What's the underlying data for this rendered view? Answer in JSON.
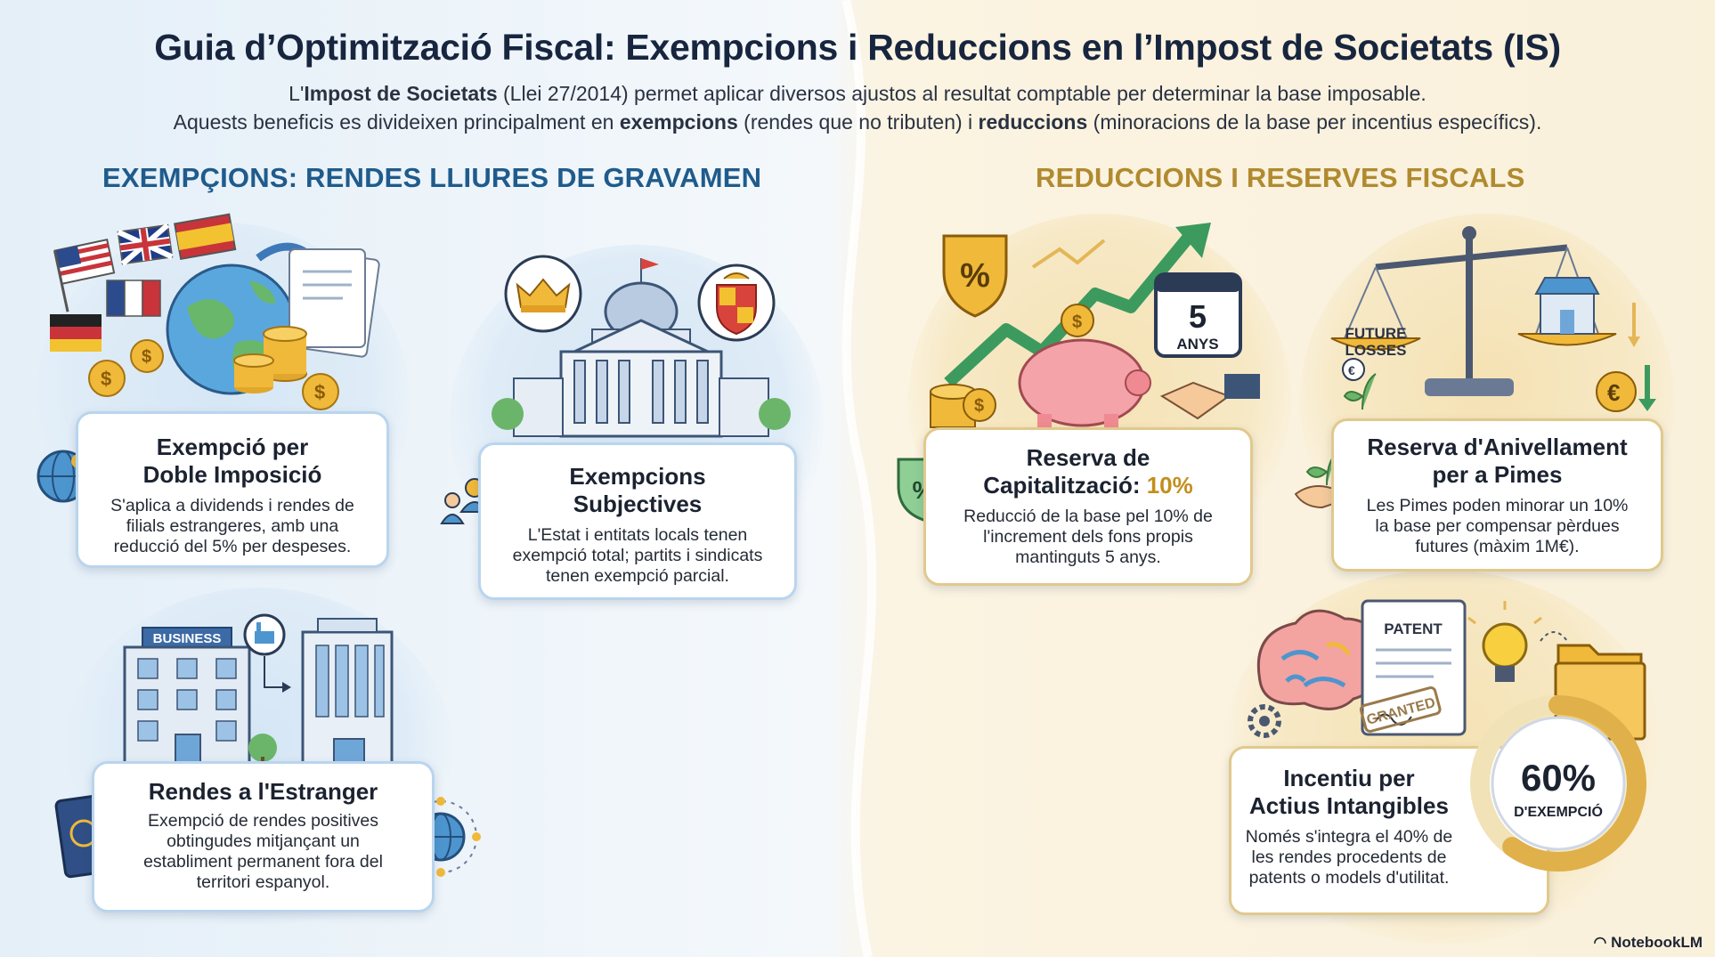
{
  "header": {
    "title": "Guia d’Optimització Fiscal: Exempcions i Reduccions en l’Impost de Societats (IS)",
    "intro_line1_pre": "L'",
    "intro_line1_bold": "Impost de Societats",
    "intro_line1_post": " (Llei 27/2014) permet aplicar diversos ajustos al resultat comptable per determinar la base imposable.",
    "intro_line2_a": "Aquests beneficis es divideixen principalment en ",
    "intro_line2_b": "exempcions",
    "intro_line2_c": " (rendes que no tributen) i ",
    "intro_line2_d": "reduccions",
    "intro_line2_e": " (minoracions de la base per incentius específics)."
  },
  "sections": {
    "left_title": "EXEMPÇIONS: RENDES LLIURES DE GRAVAMEN",
    "right_title": "REDUCCIONS I RESERVES FISCALS"
  },
  "cards": {
    "double_tax": {
      "title_1": "Exempció per",
      "title_2": "Doble Imposició",
      "desc_1": "S'aplica a dividends i rendes de",
      "desc_2": "filials estrangeres, amb una",
      "desc_3": "reducció del 5% per despeses."
    },
    "subjective": {
      "title_1": "Exempcions",
      "title_2": "Subjectives",
      "desc_1": "L'Estat i entitats locals tenen",
      "desc_2": "exempció total; partits i sindicats",
      "desc_3": "tenen exempció parcial."
    },
    "abroad": {
      "title": "Rendes a l'Estranger",
      "desc_1": "Exempció de rendes positives",
      "desc_2": "obtingudes mitjançant un",
      "desc_3": "establiment permanent fora del",
      "desc_4": "territori espanyol.",
      "building_sign": "BUSINESS"
    },
    "capitalization": {
      "title_1": "Reserva de",
      "title_2": "Capitalització: ",
      "title_highlight": "10%",
      "desc_1": "Reducció de la base pel 10% de",
      "desc_2": "l'increment dels fons propis",
      "desc_3": "mantinguts 5 anys.",
      "calendar_number": "5",
      "calendar_label": "ANYS",
      "percent_symbol": "%"
    },
    "leveling": {
      "title_1": "Reserva d'Anivellament",
      "title_2": "per a Pimes",
      "desc_1": "Les Pimes poden minorar un 10%",
      "desc_2": "la base per compensar pèrdues",
      "desc_3": "futures (màxim 1M€).",
      "scale_label_1": "FUTURE",
      "scale_label_2": "LOSSES"
    },
    "intangibles": {
      "title_1": "Incentiu per",
      "title_2": "Actius Intangibles",
      "desc_1": "Només s'integra el 40% de",
      "desc_2": "les rendes procedents de",
      "desc_3": "patents o models d'utilitat.",
      "ring_value": "60%",
      "ring_label": "D'EXEMPCIÓ",
      "exemption_fraction": 0.6,
      "patent_label": "PATENT",
      "stamp_label": "GRANTED"
    }
  },
  "footer": {
    "brand": "NotebookLM"
  },
  "colors": {
    "left_accent": "#1f5b8c",
    "right_accent": "#b08a2f",
    "highlight": "#c28f1c",
    "green_arrow": "#3c9a5f"
  }
}
